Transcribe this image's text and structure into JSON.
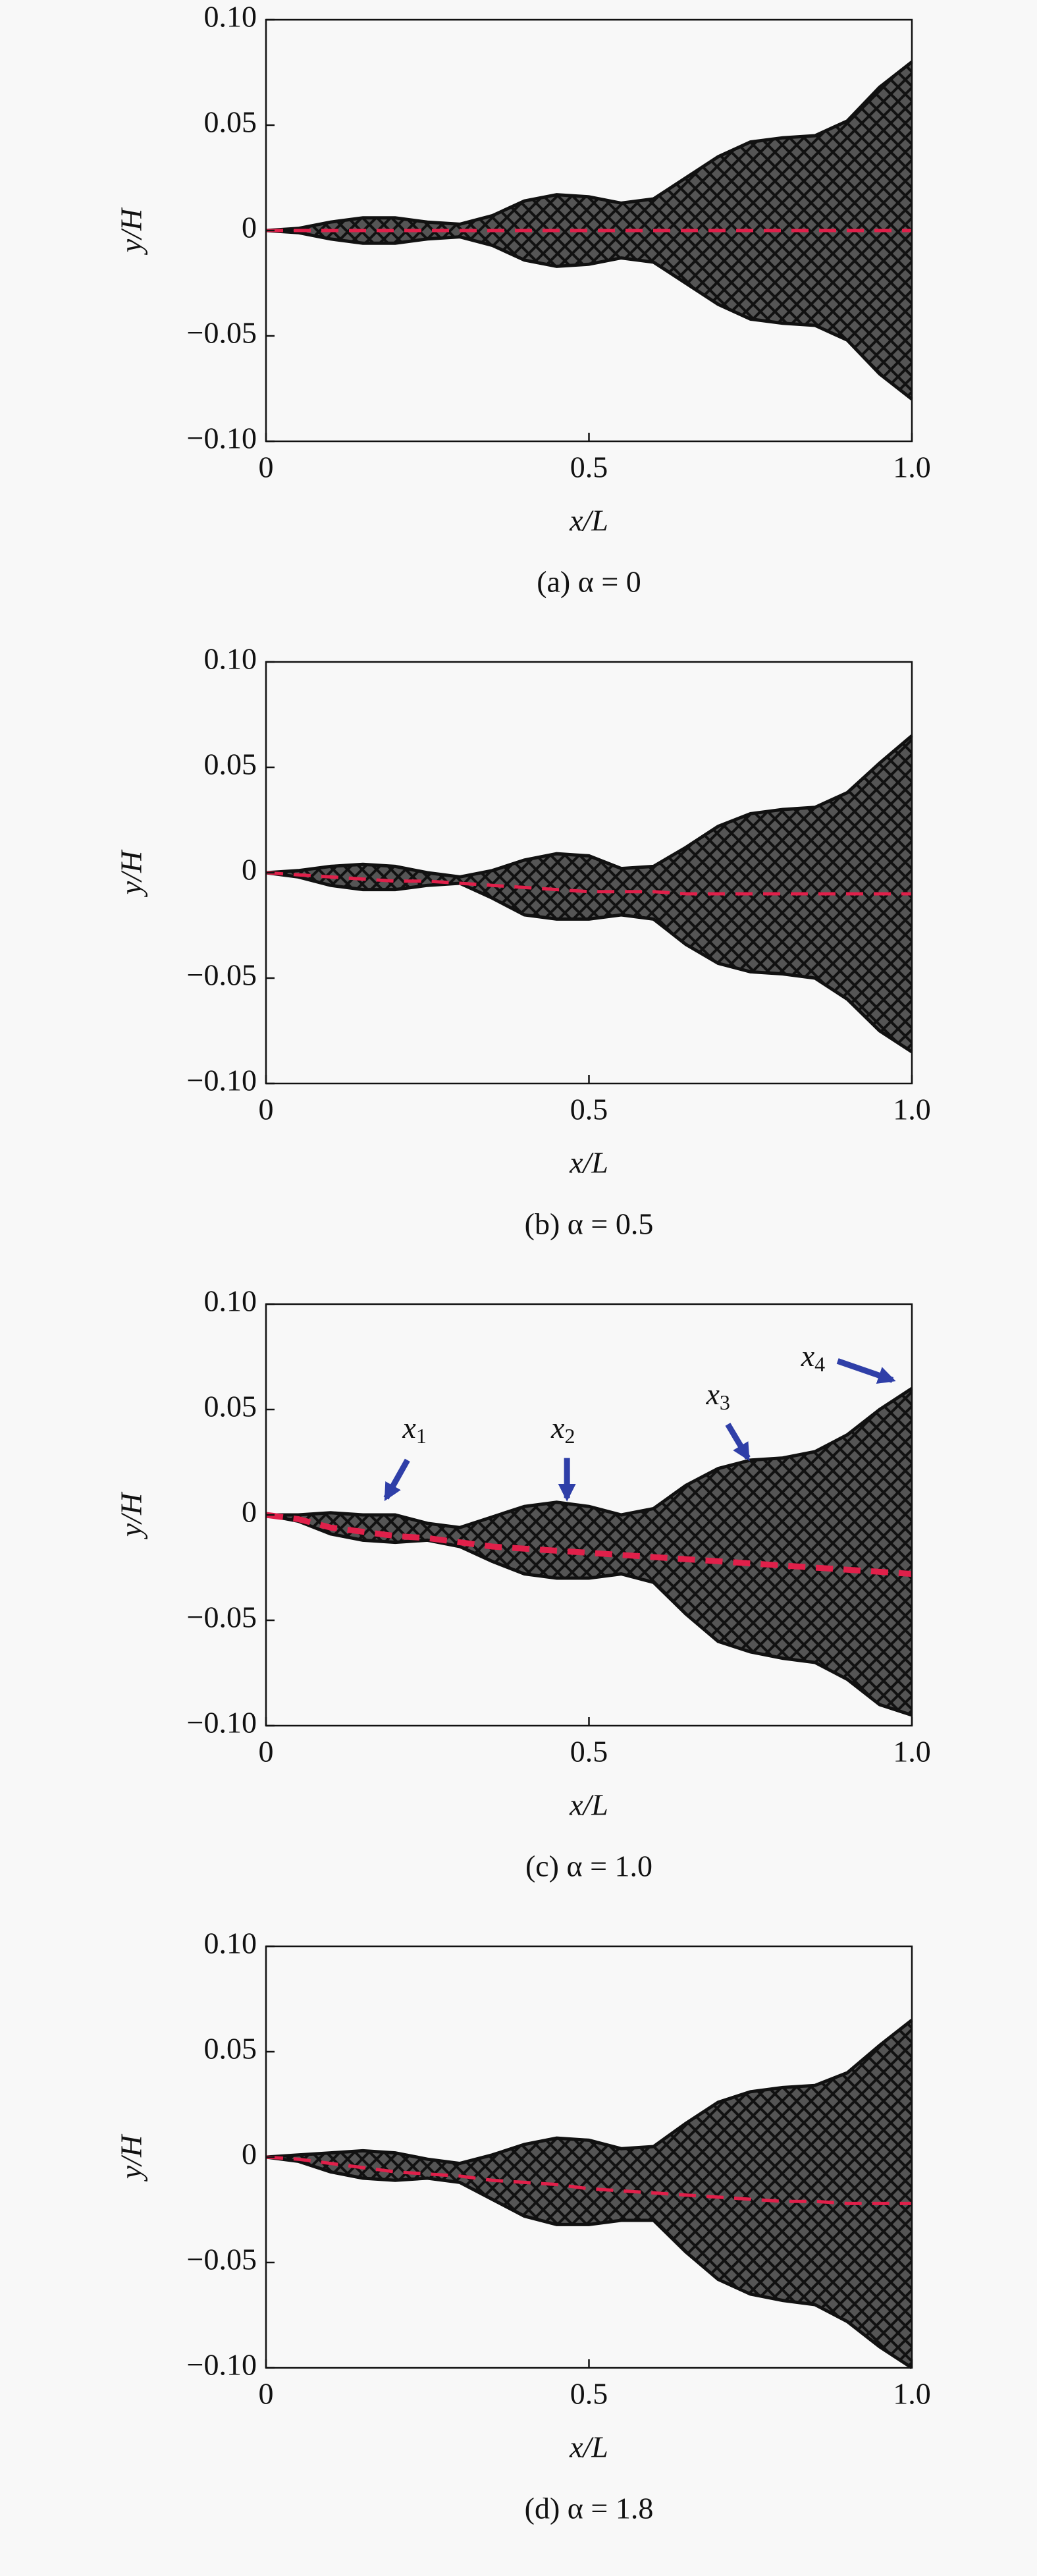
{
  "chart_data": [
    {
      "type": "line",
      "xlabel": "x/L",
      "ylabel": "y/H",
      "caption": "(a) α = 0",
      "x": [
        0,
        0.05,
        0.1,
        0.15,
        0.2,
        0.25,
        0.3,
        0.35,
        0.4,
        0.45,
        0.5,
        0.55,
        0.6,
        0.65,
        0.7,
        0.75,
        0.8,
        0.85,
        0.9,
        0.95,
        1.0
      ],
      "series": [
        {
          "color": "#111111",
          "values": [
            0,
            0.001,
            0.004,
            0.006,
            0.006,
            0.004,
            0.003,
            0.007,
            0.014,
            0.017,
            0.016,
            0.013,
            0.015,
            0.025,
            0.035,
            0.042,
            0.044,
            0.045,
            0.052,
            0.068,
            0.08
          ]
        },
        {
          "color": "#111111",
          "values": [
            0,
            -0.001,
            -0.004,
            -0.006,
            -0.006,
            -0.004,
            -0.003,
            -0.007,
            -0.014,
            -0.017,
            -0.016,
            -0.013,
            -0.015,
            -0.025,
            -0.035,
            -0.042,
            -0.044,
            -0.045,
            -0.052,
            -0.068,
            -0.08
          ]
        },
        {
          "color": "#e0204a",
          "values": [
            0,
            0,
            0,
            0,
            0,
            0,
            0,
            0,
            0,
            0,
            0,
            0,
            0,
            0,
            0,
            0,
            0,
            0,
            0,
            0,
            0
          ]
        }
      ],
      "xlim": [
        0,
        1
      ],
      "xticks": [
        0,
        0.5,
        {
          "value": 1,
          "label": "1.0"
        }
      ],
      "ylim": [
        -0.1,
        0.1
      ],
      "yticks": [
        {
          "value": -0.1,
          "label": "−0.10"
        },
        {
          "value": -0.05,
          "label": "−0.05"
        },
        0,
        0.05,
        {
          "value": 0.1,
          "label": "0.10"
        }
      ]
    },
    {
      "type": "line",
      "xlabel": "x/L",
      "ylabel": "y/H",
      "caption": "(b) α = 0.5",
      "x": [
        0,
        0.05,
        0.1,
        0.15,
        0.2,
        0.25,
        0.3,
        0.35,
        0.4,
        0.45,
        0.5,
        0.55,
        0.6,
        0.65,
        0.7,
        0.75,
        0.8,
        0.85,
        0.9,
        0.95,
        1.0
      ],
      "series": [
        {
          "color": "#111111",
          "values": [
            0,
            0.001,
            0.003,
            0.004,
            0.003,
            0.0,
            -0.002,
            0.001,
            0.006,
            0.009,
            0.008,
            0.002,
            0.003,
            0.012,
            0.022,
            0.028,
            0.03,
            0.031,
            0.038,
            0.052,
            0.065
          ]
        },
        {
          "color": "#111111",
          "values": [
            0,
            -0.002,
            -0.006,
            -0.008,
            -0.008,
            -0.006,
            -0.005,
            -0.012,
            -0.02,
            -0.022,
            -0.022,
            -0.02,
            -0.022,
            -0.034,
            -0.043,
            -0.047,
            -0.048,
            -0.05,
            -0.06,
            -0.075,
            -0.085
          ]
        },
        {
          "color": "#e0204a",
          "values": [
            0,
            -0.001,
            -0.002,
            -0.003,
            -0.004,
            -0.004,
            -0.005,
            -0.006,
            -0.007,
            -0.008,
            -0.009,
            -0.009,
            -0.009,
            -0.01,
            -0.01,
            -0.01,
            -0.01,
            -0.01,
            -0.01,
            -0.01,
            -0.01
          ]
        }
      ],
      "xlim": [
        0,
        1
      ],
      "xticks": [
        0,
        0.5,
        {
          "value": 1,
          "label": "1.0"
        }
      ],
      "ylim": [
        -0.1,
        0.1
      ],
      "yticks": [
        {
          "value": -0.1,
          "label": "−0.10"
        },
        {
          "value": -0.05,
          "label": "−0.05"
        },
        0,
        0.05,
        {
          "value": 0.1,
          "label": "0.10"
        }
      ]
    },
    {
      "type": "line",
      "xlabel": "x/L",
      "ylabel": "y/H",
      "caption": "(c) α = 1.0",
      "x": [
        0,
        0.05,
        0.1,
        0.15,
        0.2,
        0.25,
        0.3,
        0.35,
        0.4,
        0.45,
        0.5,
        0.55,
        0.6,
        0.65,
        0.7,
        0.75,
        0.8,
        0.85,
        0.9,
        0.95,
        1.0
      ],
      "series": [
        {
          "color": "#111111",
          "values": [
            0,
            0,
            0.001,
            0,
            0,
            -0.004,
            -0.006,
            -0.001,
            0.004,
            0.006,
            0.004,
            0,
            0.003,
            0.014,
            0.022,
            0.026,
            0.027,
            0.03,
            0.038,
            0.05,
            0.06
          ]
        },
        {
          "color": "#111111",
          "values": [
            0,
            -0.003,
            -0.009,
            -0.012,
            -0.013,
            -0.012,
            -0.015,
            -0.022,
            -0.028,
            -0.03,
            -0.03,
            -0.028,
            -0.032,
            -0.047,
            -0.06,
            -0.065,
            -0.068,
            -0.07,
            -0.078,
            -0.09,
            -0.095
          ]
        },
        {
          "color": "#e0204a",
          "values": [
            0,
            -0.002,
            -0.006,
            -0.008,
            -0.01,
            -0.011,
            -0.013,
            -0.015,
            -0.016,
            -0.017,
            -0.018,
            -0.019,
            -0.02,
            -0.021,
            -0.022,
            -0.023,
            -0.024,
            -0.025,
            -0.026,
            -0.027,
            -0.028
          ]
        }
      ],
      "annotations": [
        {
          "text": "x",
          "sub": "1"
        },
        {
          "text": "x",
          "sub": "2"
        },
        {
          "text": "x",
          "sub": "3"
        },
        {
          "text": "x",
          "sub": "4"
        }
      ],
      "xlim": [
        0,
        1
      ],
      "xticks": [
        0,
        0.5,
        {
          "value": 1,
          "label": "1.0"
        }
      ],
      "ylim": [
        -0.1,
        0.1
      ],
      "yticks": [
        {
          "value": -0.1,
          "label": "−0.10"
        },
        {
          "value": -0.05,
          "label": "−0.05"
        },
        0,
        0.05,
        {
          "value": 0.1,
          "label": "0.10"
        }
      ]
    },
    {
      "type": "line",
      "xlabel": "x/L",
      "ylabel": "y/H",
      "caption": "(d) α = 1.8",
      "x": [
        0,
        0.05,
        0.1,
        0.15,
        0.2,
        0.25,
        0.3,
        0.35,
        0.4,
        0.45,
        0.5,
        0.55,
        0.6,
        0.65,
        0.7,
        0.75,
        0.8,
        0.85,
        0.9,
        0.95,
        1.0
      ],
      "series": [
        {
          "color": "#111111",
          "values": [
            0,
            0.001,
            0.002,
            0.003,
            0.002,
            -0.001,
            -0.003,
            0.001,
            0.006,
            0.009,
            0.008,
            0.004,
            0.005,
            0.016,
            0.026,
            0.031,
            0.033,
            0.034,
            0.04,
            0.053,
            0.065
          ]
        },
        {
          "color": "#111111",
          "values": [
            0,
            -0.002,
            -0.007,
            -0.01,
            -0.011,
            -0.01,
            -0.012,
            -0.02,
            -0.028,
            -0.032,
            -0.032,
            -0.03,
            -0.03,
            -0.045,
            -0.058,
            -0.065,
            -0.068,
            -0.07,
            -0.078,
            -0.09,
            -0.1
          ]
        },
        {
          "color": "#e0204a",
          "values": [
            0,
            -0.001,
            -0.003,
            -0.005,
            -0.007,
            -0.008,
            -0.009,
            -0.011,
            -0.012,
            -0.013,
            -0.015,
            -0.016,
            -0.017,
            -0.018,
            -0.019,
            -0.02,
            -0.021,
            -0.021,
            -0.022,
            -0.022,
            -0.022
          ]
        }
      ],
      "xlim": [
        0,
        1
      ],
      "xticks": [
        0,
        0.5,
        {
          "value": 1,
          "label": "1.0"
        }
      ],
      "ylim": [
        -0.1,
        0.1
      ],
      "yticks": [
        {
          "value": -0.1,
          "label": "−0.10"
        },
        {
          "value": -0.05,
          "label": "−0.05"
        },
        0,
        0.05,
        {
          "value": 0.1,
          "label": "0.10"
        }
      ]
    }
  ]
}
